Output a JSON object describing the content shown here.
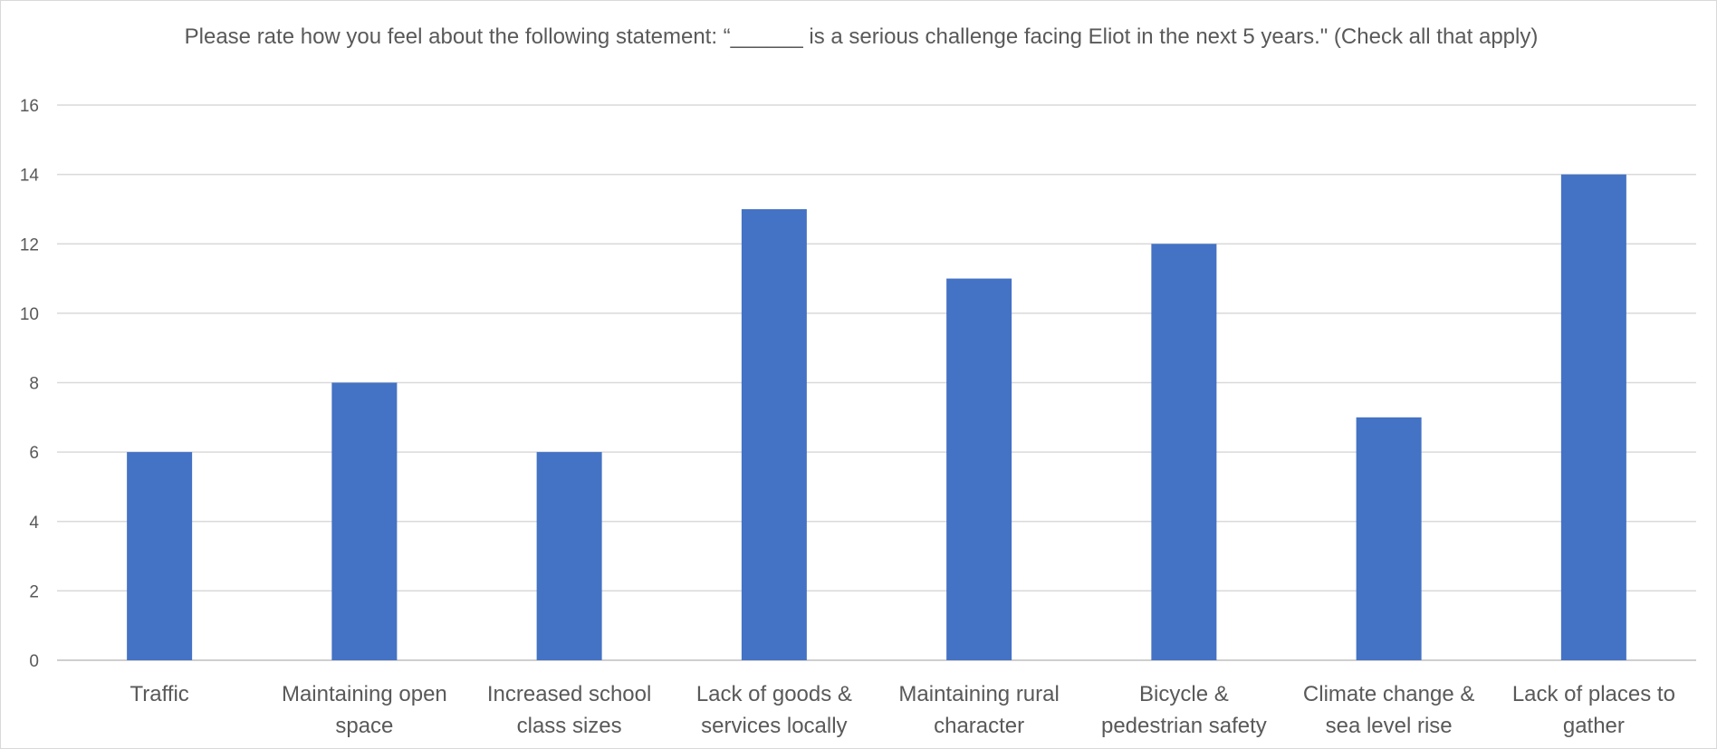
{
  "chart_data": {
    "type": "bar",
    "title": "Please rate how you feel about the following statement: “______ is a serious challenge facing Eliot in the next 5 years.\" (Check all that apply)",
    "categories": [
      [
        "Traffic"
      ],
      [
        "Maintaining open",
        "space"
      ],
      [
        "Increased school",
        "class sizes"
      ],
      [
        "Lack of goods &",
        "services locally"
      ],
      [
        "Maintaining rural",
        "character"
      ],
      [
        "Bicycle &",
        "pedestrian safety"
      ],
      [
        "Climate change &",
        "sea level rise"
      ],
      [
        "Lack of places to",
        "gather"
      ]
    ],
    "values": [
      6,
      8,
      6,
      13,
      11,
      12,
      7,
      14
    ],
    "xlabel": "",
    "ylabel": "",
    "ylim": [
      0,
      16
    ],
    "yticks": [
      0,
      2,
      4,
      6,
      8,
      10,
      12,
      14,
      16
    ],
    "grid": true,
    "legend": "none",
    "bar_color": "#4472c4",
    "grid_color": "#d9d9d9",
    "text_color": "#595959"
  }
}
